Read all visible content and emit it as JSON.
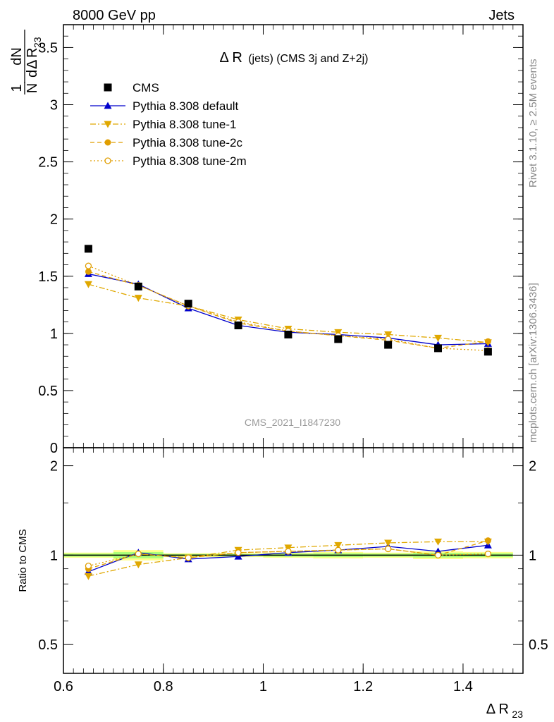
{
  "header": {
    "left": "8000 GeV pp",
    "right": "Jets",
    "side_rivet": "Rivet 3.1.10, ≥ 2.5M events",
    "side_mcplots": "mcplots.cern.ch [arXiv:1306.3436]"
  },
  "chart_data": [
    {
      "type": "scatter",
      "title": "Δ R (jets) (CMS 3j and Z+2j)",
      "title_main": "Δ R",
      "title_sub": "(jets) (CMS 3j and Z+2j)",
      "analysis_id": "CMS_2021_I1847230",
      "ylabel": {
        "one": "1",
        "N": "N",
        "dN": "dN",
        "d": "d",
        "delta": "Δ",
        "R": "R",
        "sub": "23"
      },
      "xlim": [
        0.6,
        1.52
      ],
      "ylim": [
        0,
        3.7
      ],
      "x_ticks": [
        0.6,
        0.8,
        1.0,
        1.2,
        1.4
      ],
      "x_tick_labels": [
        "0.6",
        "0.8",
        "1",
        "1.2",
        "1.4"
      ],
      "y_ticks": [
        0,
        0.5,
        1,
        1.5,
        2,
        2.5,
        3,
        3.5
      ],
      "y_tick_labels": [
        "0",
        "0.5",
        "1",
        "1.5",
        "2",
        "2.5",
        "3",
        "3.5"
      ],
      "legend_position": "top-left",
      "x": [
        0.65,
        0.75,
        0.85,
        0.95,
        1.05,
        1.15,
        1.25,
        1.35,
        1.45
      ],
      "series": [
        {
          "name": "CMS",
          "marker": "square",
          "color": "#000000",
          "values": [
            1.74,
            1.41,
            1.26,
            1.07,
            0.99,
            0.95,
            0.9,
            0.87,
            0.84
          ]
        },
        {
          "name": "Pythia 8.308 default",
          "marker": "triangle-up",
          "color": "#0000cc",
          "line": "solid",
          "values": [
            1.52,
            1.43,
            1.22,
            1.07,
            1.01,
            0.99,
            0.96,
            0.9,
            0.91
          ]
        },
        {
          "name": "Pythia 8.308 tune-1",
          "marker": "triangle-down",
          "color": "#e0a800",
          "line": "dashdot",
          "values": [
            1.43,
            1.31,
            1.24,
            1.12,
            1.04,
            1.01,
            0.99,
            0.96,
            0.92
          ]
        },
        {
          "name": "Pythia 8.308 tune-2c",
          "marker": "circle",
          "color": "#e09e00",
          "line": "dashed",
          "values": [
            1.54,
            1.42,
            1.24,
            1.09,
            1.02,
            0.98,
            0.94,
            0.87,
            0.93
          ]
        },
        {
          "name": "Pythia 8.308 tune-2m",
          "marker": "circle-open",
          "color": "#e09e00",
          "line": "dotted",
          "values": [
            1.59,
            1.42,
            1.24,
            1.1,
            1.02,
            0.98,
            0.95,
            0.87,
            0.85
          ]
        }
      ]
    },
    {
      "type": "line",
      "ylabel": "Ratio to CMS",
      "xlabel_main": "Δ R",
      "xlabel_sub": "23",
      "xlim": [
        0.6,
        1.52
      ],
      "ylim": [
        0.4,
        2.3
      ],
      "scale": "log",
      "y_ticks": [
        0.5,
        1,
        2
      ],
      "y_tick_labels": [
        "0.5",
        "1",
        "2"
      ],
      "x_ticks": [
        0.6,
        0.8,
        1.0,
        1.2,
        1.4
      ],
      "x_tick_labels": [
        "0.6",
        "0.8",
        "1",
        "1.2",
        "1.4"
      ],
      "band_color": "#ffff66",
      "band_inner_color": "#66ff66",
      "x": [
        0.65,
        0.75,
        0.85,
        0.95,
        1.05,
        1.15,
        1.25,
        1.35,
        1.45
      ],
      "band_half_width": [
        0.02,
        0.04,
        0.015,
        0.015,
        0.02,
        0.025,
        0.02,
        0.03,
        0.025
      ],
      "series": [
        {
          "name": "Pythia 8.308 default",
          "marker": "triangle-up",
          "color": "#0000cc",
          "line": "solid",
          "values": [
            0.88,
            1.02,
            0.97,
            0.99,
            1.02,
            1.04,
            1.07,
            1.03,
            1.08
          ]
        },
        {
          "name": "Pythia 8.308 tune-1",
          "marker": "triangle-down",
          "color": "#e0a800",
          "line": "dashdot",
          "values": [
            0.85,
            0.93,
            0.98,
            1.04,
            1.06,
            1.08,
            1.1,
            1.11,
            1.11
          ]
        },
        {
          "name": "Pythia 8.308 tune-2c",
          "marker": "circle",
          "color": "#e09e00",
          "line": "dashed",
          "values": [
            0.9,
            1.01,
            0.98,
            1.02,
            1.03,
            1.04,
            1.05,
            1.0,
            1.12
          ]
        },
        {
          "name": "Pythia 8.308 tune-2m",
          "marker": "circle-open",
          "color": "#e09e00",
          "line": "dotted",
          "values": [
            0.92,
            1.01,
            0.98,
            1.02,
            1.03,
            1.04,
            1.05,
            1.0,
            1.01
          ]
        }
      ]
    }
  ]
}
